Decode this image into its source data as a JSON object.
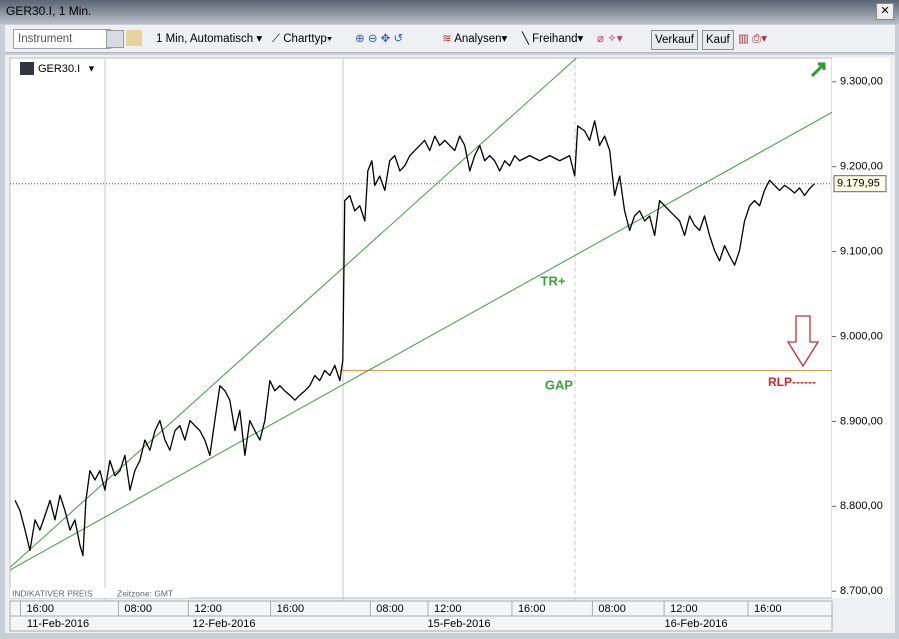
{
  "window": {
    "title": "GER30.I, 1 Min."
  },
  "toolbar": {
    "instrument_placeholder": "Instrument",
    "interval": "1 Min, Automatisch",
    "chart_type": "Charttyp",
    "analyses": "Analysen",
    "freehand": "Freihand",
    "sell": "Verkauf",
    "buy": "Kauf"
  },
  "chart_data": {
    "type": "line",
    "instrument": "GER30.I",
    "color": "#000000",
    "x": [
      0.29,
      0.57,
      0.86,
      1.14,
      1.43,
      1.71,
      2,
      2.29,
      2.57,
      2.86,
      3.14,
      3.43,
      3.71,
      4,
      4.17,
      4.34,
      4.57,
      4.86,
      5.14,
      5.43,
      5.71,
      6,
      6.29,
      6.57,
      6.86,
      7.14,
      7.43,
      7.71,
      8,
      8.29,
      8.57,
      8.86,
      9.14,
      9.43,
      9.71,
      10,
      10.29,
      10.57,
      10.86,
      11.14,
      11.43,
      11.71,
      12,
      12.29,
      12.57,
      12.86,
      13.14,
      13.43,
      13.71,
      14,
      14.29,
      14.57,
      14.86,
      15.14,
      15.43,
      15.71,
      16,
      16.29,
      16.57,
      16.86,
      17.14,
      17.43,
      17.71,
      18,
      18.29,
      18.57,
      18.86,
      19.03,
      19.14,
      19.43,
      19.71,
      20,
      20.29,
      20.46,
      20.69,
      20.86,
      21.14,
      21.43,
      21.71,
      22,
      22.29,
      22.57,
      22.86,
      23.14,
      23.43,
      23.71,
      24,
      24.29,
      24.57,
      24.86,
      25.14,
      25.43,
      25.71,
      26,
      26.29,
      26.57,
      26.86,
      27.14,
      27.43,
      27.71,
      28,
      28.29,
      28.57,
      28.86,
      29.14,
      29.71,
      30.29,
      30.86,
      31.43,
      32,
      32.29,
      32.46,
      32.86,
      33.14,
      33.43,
      33.71,
      34,
      34.29,
      34.57,
      34.86,
      35.14,
      35.43,
      35.71,
      36,
      36.29,
      36.57,
      36.86,
      37.14,
      37.43,
      37.71,
      38,
      38.29,
      38.57,
      38.86,
      39.14,
      39.43,
      39.71,
      40,
      40.29,
      40.57,
      40.86,
      41.14,
      41.43,
      41.71,
      42,
      42.29,
      42.57,
      42.86,
      43.14,
      43.43,
      43.71,
      44,
      44.29,
      44.57,
      44.86,
      45.14,
      45.43,
      45.71,
      46
    ],
    "values": [
      8807,
      8795,
      8772,
      8748,
      8784,
      8772,
      8789,
      8807,
      8784,
      8813,
      8795,
      8772,
      8784,
      8754,
      8742,
      8807,
      8842,
      8831,
      8842,
      8819,
      8854,
      8836,
      8842,
      8860,
      8819,
      8842,
      8854,
      8878,
      8866,
      8889,
      8901,
      8878,
      8866,
      8889,
      8895,
      8878,
      8901,
      8895,
      8889,
      8878,
      8860,
      8901,
      8942,
      8936,
      8925,
      8889,
      8913,
      8860,
      8901,
      8889,
      8878,
      8901,
      8948,
      8936,
      8942,
      8936,
      8931,
      8925,
      8931,
      8936,
      8942,
      8954,
      8948,
      8960,
      8954,
      8966,
      8948,
      8972,
      9160,
      9166,
      9148,
      9154,
      9136,
      9195,
      9207,
      9178,
      9189,
      9172,
      9207,
      9213,
      9195,
      9201,
      9213,
      9219,
      9225,
      9231,
      9219,
      9236,
      9225,
      9231,
      9225,
      9219,
      9236,
      9225,
      9195,
      9213,
      9225,
      9207,
      9213,
      9207,
      9195,
      9207,
      9201,
      9213,
      9207,
      9213,
      9207,
      9213,
      9207,
      9213,
      9189,
      9248,
      9242,
      9231,
      9254,
      9225,
      9236,
      9219,
      9166,
      9189,
      9148,
      9125,
      9142,
      9148,
      9136,
      9142,
      9119,
      9160,
      9154,
      9148,
      9142,
      9136,
      9119,
      9142,
      9131,
      9125,
      9142,
      9119,
      9101,
      9089,
      9107,
      9095,
      9084,
      9101,
      9136,
      9154,
      9160,
      9154,
      9172,
      9184,
      9178,
      9172,
      9178,
      9174,
      9169,
      9175,
      9166,
      9174,
      9180
    ],
    "xlim": [
      0,
      47
    ],
    "xticks": [
      {
        "value": 0.6,
        "label": "16:00"
      },
      {
        "value": 6.2,
        "label": "08:00"
      },
      {
        "value": 10.2,
        "label": "12:00"
      },
      {
        "value": 14.9,
        "label": "16:00"
      },
      {
        "value": 20.6,
        "label": "08:00"
      },
      {
        "value": 23.9,
        "label": "12:00"
      },
      {
        "value": 28.7,
        "label": "16:00"
      },
      {
        "value": 33.3,
        "label": "08:00"
      },
      {
        "value": 37.4,
        "label": "12:00"
      },
      {
        "value": 42.2,
        "label": "16:00"
      }
    ],
    "dates": [
      "11-Feb-2016",
      "12-Feb-2016",
      "15-Feb-2016",
      "16-Feb-2016"
    ],
    "ylim": [
      8692,
      9328
    ],
    "yticks": [
      {
        "value": 8700,
        "label": "8.700,00"
      },
      {
        "value": 8800,
        "label": "8.800,00"
      },
      {
        "value": 8900,
        "label": "8.900,00"
      },
      {
        "value": 9000,
        "label": "9.000,00"
      },
      {
        "value": 9100,
        "label": "9.100,00"
      },
      {
        "value": 9200,
        "label": "9.200,00"
      },
      {
        "value": 9300,
        "label": "9.300,00"
      }
    ],
    "last_price": {
      "value": 9179.95,
      "label": "9.179,95",
      "color": "#c03030"
    },
    "trendlines": [
      {
        "x": [
          0,
          33.14
        ],
        "values": [
          8728,
          9342
        ],
        "color": "#3c9c3c"
      },
      {
        "x": [
          0,
          47
        ],
        "values": [
          8725,
          9264
        ],
        "color": "#3c9c3c"
      }
    ],
    "hlines": [
      {
        "value": 8960,
        "x_from": 18.86,
        "color": "#e39a55"
      }
    ],
    "annotations": [
      {
        "text": "TR+",
        "color": "#3ca03c"
      },
      {
        "text": "GAP",
        "color": "#3ca03c"
      },
      {
        "text": "RLP------",
        "color": "#d02828"
      }
    ],
    "footer": {
      "price_note": "INDIKATIVER PREIS",
      "timezone": "Zeitzone: GMT"
    }
  }
}
